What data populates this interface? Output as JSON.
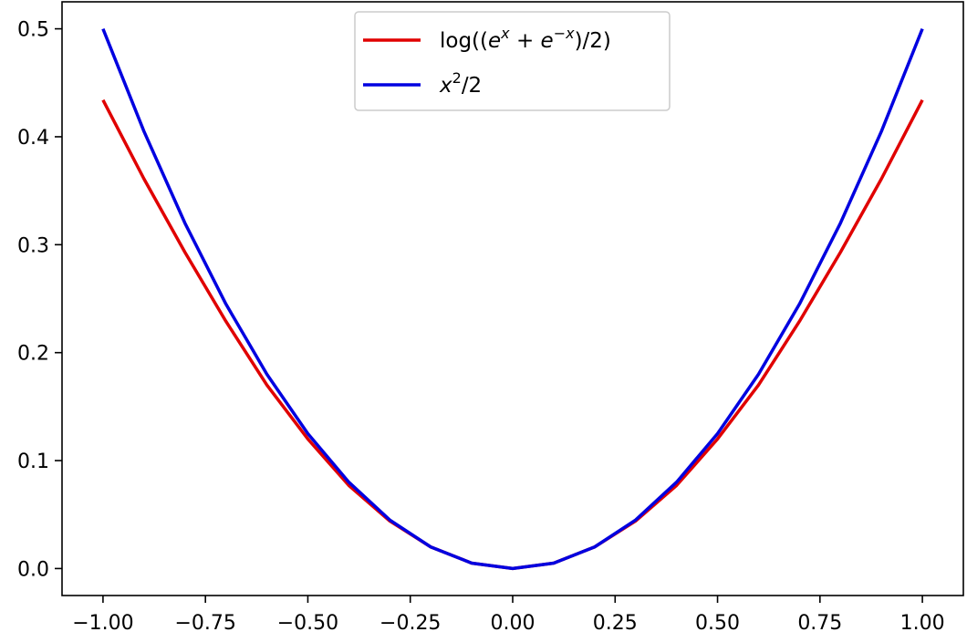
{
  "chart_data": {
    "type": "line",
    "title": "",
    "xlabel": "",
    "ylabel": "",
    "xlim": [
      -1.1,
      1.1
    ],
    "ylim": [
      -0.025,
      0.525
    ],
    "grid": false,
    "legend_position": "top-center",
    "x_ticks": [
      -1.0,
      -0.75,
      -0.5,
      -0.25,
      0.0,
      0.25,
      0.5,
      0.75,
      1.0
    ],
    "x_tick_labels": [
      "−1.00",
      "−0.75",
      "−0.50",
      "−0.25",
      "0.00",
      "0.25",
      "0.50",
      "0.75",
      "1.00"
    ],
    "y_ticks": [
      0.0,
      0.1,
      0.2,
      0.3,
      0.4,
      0.5
    ],
    "y_tick_labels": [
      "0.0",
      "0.1",
      "0.2",
      "0.3",
      "0.4",
      "0.5"
    ],
    "x": [
      -1.0,
      -0.9,
      -0.8,
      -0.7,
      -0.6,
      -0.5,
      -0.4,
      -0.3,
      -0.2,
      -0.1,
      0.0,
      0.1,
      0.2,
      0.3,
      0.4,
      0.5,
      0.6,
      0.7,
      0.8,
      0.9,
      1.0
    ],
    "series": [
      {
        "name": "log((e^x + e^-x)/2)",
        "color": "#e00000",
        "values": [
          0.434,
          0.361,
          0.293,
          0.229,
          0.17,
          0.12,
          0.077,
          0.044,
          0.02,
          0.005,
          0.0,
          0.005,
          0.02,
          0.044,
          0.077,
          0.12,
          0.17,
          0.229,
          0.293,
          0.361,
          0.434
        ]
      },
      {
        "name": "x^2/2",
        "color": "#0000e0",
        "values": [
          0.5,
          0.405,
          0.32,
          0.245,
          0.18,
          0.125,
          0.08,
          0.045,
          0.02,
          0.005,
          0.0,
          0.005,
          0.02,
          0.045,
          0.08,
          0.125,
          0.18,
          0.245,
          0.32,
          0.405,
          0.5
        ]
      }
    ],
    "legend": {
      "entries": [
        {
          "base": "log((",
          "e1": "e",
          "sup1": "x",
          "plus": " + ",
          "e2": "e",
          "sup2": "−x",
          "tail": ")/2)"
        },
        {
          "var": "x",
          "sup": "2",
          "tail": "/2"
        }
      ]
    }
  }
}
